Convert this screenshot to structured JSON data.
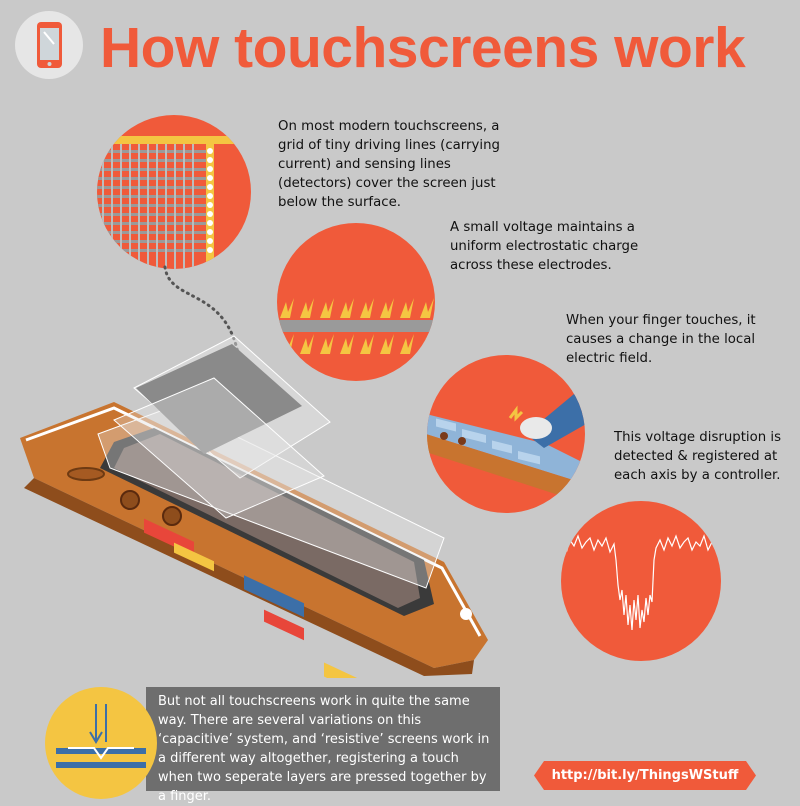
{
  "header": {
    "title": "How touchscreens work",
    "icon": "phone-icon"
  },
  "steps": [
    {
      "text": "On most modern touchscreens, a grid of tiny driving lines (carrying current) and sensing lines (detectors) cover the screen just below the surface.",
      "illustration": "electrode-grid"
    },
    {
      "text": "A small voltage maintains a uniform electrostatic charge across these electrodes.",
      "illustration": "charge-sparks"
    },
    {
      "text": "When your finger touches, it causes a change in the local electric field.",
      "illustration": "finger-touch"
    },
    {
      "text": "This voltage disruption is detected & registered at each axis by a controller.",
      "illustration": "signal-waveform"
    }
  ],
  "footer": {
    "note": "But not all touchscreens work in quite the same way. There are several variations on this ‘capacitive’ system, and ‘resistive’ screens work in a different way altogether, registering a touch when two seperate layers are pressed together by a finger.",
    "url": "http://bit.ly/ThingsWStuff",
    "badge_icon": "resistive-layers-icon"
  },
  "colors": {
    "accent": "#f05a3a",
    "background": "#c9c9c9",
    "phone_body": "#c8742f",
    "yellow": "#f4c542",
    "panel": "#6e6e6e"
  }
}
